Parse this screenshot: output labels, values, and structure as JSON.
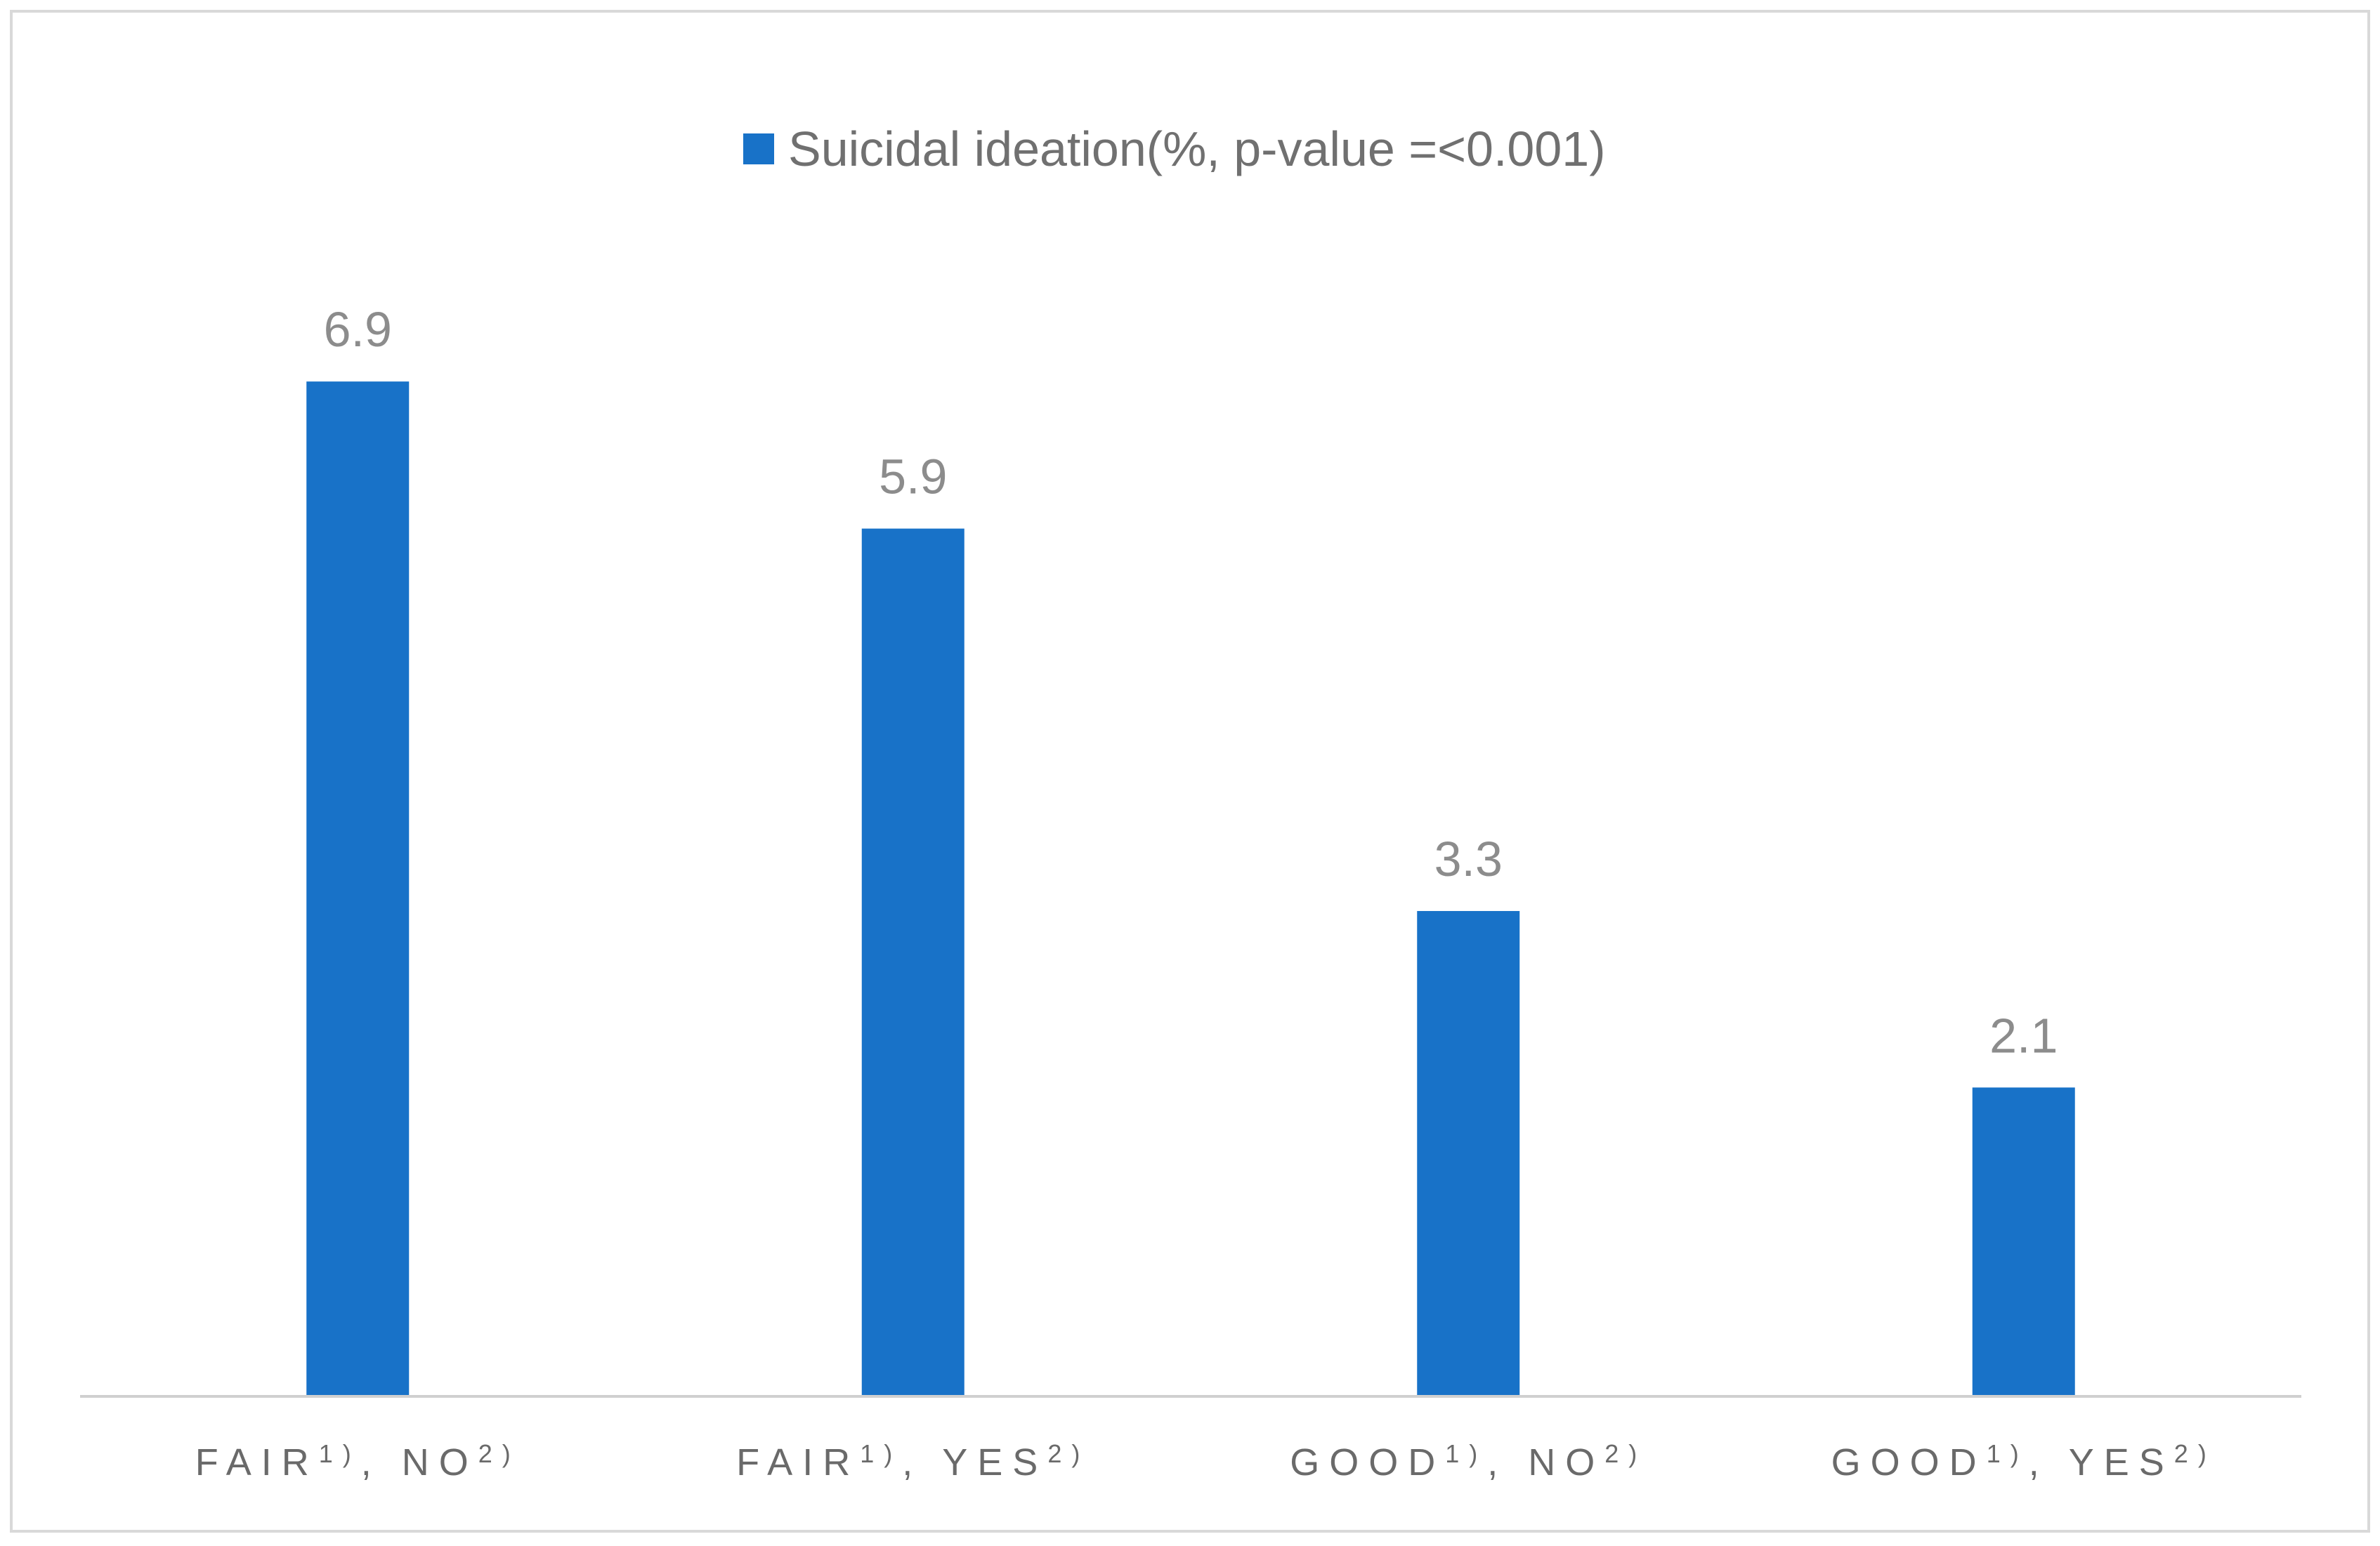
{
  "chart_data": {
    "type": "bar",
    "categories": [
      {
        "label": "FAIR",
        "sup1": "1)",
        "sep": ", ",
        "label2": "NO",
        "sup2": "2)"
      },
      {
        "label": "FAIR",
        "sup1": "1)",
        "sep": ", ",
        "label2": "YES",
        "sup2": "2)"
      },
      {
        "label": "GOOD",
        "sup1": "1)",
        "sep": ", ",
        "label2": "NO",
        "sup2": "2)"
      },
      {
        "label": "GOOD",
        "sup1": "1)",
        "sep": ", ",
        "label2": "YES",
        "sup2": "2)"
      }
    ],
    "series": [
      {
        "name": "Suicidal ideation(%, p-value =<0.001)",
        "values": [
          6.9,
          5.9,
          3.3,
          2.1
        ],
        "color": "#1872c8"
      }
    ],
    "data_labels": [
      "6.9",
      "5.9",
      "3.3",
      "2.1"
    ],
    "ylim": [
      0,
      8
    ],
    "grid": false,
    "legend_position": "top-center",
    "colors": {
      "bar": "#1872c8",
      "axis": "#d0d0d0",
      "frame": "#d9d9d9",
      "data_label": "#8c8c8c",
      "tick_label": "#6a6a6a"
    }
  }
}
